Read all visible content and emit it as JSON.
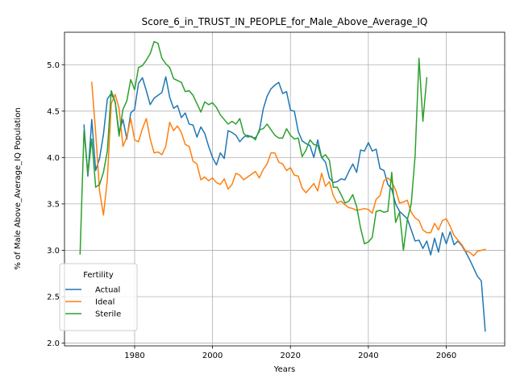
{
  "chart_data": {
    "type": "line",
    "title": "Score_6_in_TRUST_IN_PEOPLE_for_Male_Above_Average_IQ",
    "xlabel": "Years",
    "ylabel": "% of Male Above_Average_IQ Population",
    "xlim": [
      1962,
      2075
    ],
    "ylim": [
      1.97,
      5.35
    ],
    "xticks": [
      1980,
      2000,
      2020,
      2040,
      2060
    ],
    "yticks": [
      2.0,
      2.5,
      3.0,
      3.5,
      4.0,
      4.5,
      5.0
    ],
    "ytick_labels": [
      "2.0",
      "2.5",
      "3.0",
      "3.5",
      "4.0",
      "4.5",
      "5.0"
    ],
    "grid": true,
    "legend": {
      "title": "Fertility",
      "position": "lower-left"
    },
    "colors": {
      "Actual": "#1f77b4",
      "Ideal": "#ff7f0e",
      "Sterile": "#2ca02c"
    },
    "series": [
      {
        "name": "Actual",
        "x": [
          1967,
          1968,
          1969,
          1970,
          1971,
          1972,
          1973,
          1974,
          1975,
          1976,
          1977,
          1978,
          1979,
          1980,
          1981,
          1982,
          1983,
          1984,
          1985,
          1986,
          1987,
          1988,
          1989,
          1990,
          1991,
          1992,
          1993,
          1994,
          1995,
          1996,
          1997,
          1998,
          1999,
          2000,
          2001,
          2002,
          2003,
          2004,
          2005,
          2006,
          2007,
          2008,
          2009,
          2010,
          2011,
          2012,
          2013,
          2014,
          2015,
          2016,
          2017,
          2018,
          2019,
          2020,
          2021,
          2022,
          2023,
          2024,
          2025,
          2026,
          2027,
          2028,
          2029,
          2030,
          2031,
          2032,
          2033,
          2034,
          2035,
          2036,
          2037,
          2038,
          2039,
          2040,
          2041,
          2042,
          2043,
          2044,
          2045,
          2046,
          2047,
          2048,
          2049,
          2050,
          2051,
          2052,
          2053,
          2054,
          2055,
          2056,
          2057,
          2058,
          2059,
          2060,
          2061,
          2062,
          2063,
          2064,
          2065,
          2066,
          2067,
          2068,
          2069,
          2070
        ],
        "values": [
          4.35,
          3.8,
          4.41,
          3.86,
          3.99,
          4.25,
          4.63,
          4.69,
          4.6,
          4.27,
          4.41,
          4.2,
          4.48,
          4.52,
          4.8,
          4.86,
          4.72,
          4.57,
          4.64,
          4.67,
          4.7,
          4.87,
          4.65,
          4.53,
          4.56,
          4.43,
          4.48,
          4.36,
          4.35,
          4.22,
          4.33,
          4.26,
          4.12,
          4.0,
          3.92,
          4.05,
          3.99,
          4.29,
          4.27,
          4.24,
          4.17,
          4.22,
          4.24,
          4.22,
          4.21,
          4.28,
          4.52,
          4.66,
          4.74,
          4.78,
          4.81,
          4.69,
          4.71,
          4.51,
          4.5,
          4.28,
          4.18,
          4.15,
          4.13,
          4.0,
          4.19,
          4.0,
          3.95,
          3.78,
          3.73,
          3.74,
          3.77,
          3.76,
          3.85,
          3.93,
          3.84,
          4.08,
          4.07,
          4.16,
          4.07,
          4.09,
          3.88,
          3.86,
          3.71,
          3.66,
          3.5,
          3.42,
          3.38,
          3.34,
          3.22,
          3.1,
          3.11,
          3.02,
          3.1,
          2.95,
          3.13,
          2.98,
          3.19,
          3.07,
          3.2,
          3.06,
          3.1,
          3.05,
          2.98,
          2.9,
          2.81,
          2.72,
          2.67,
          2.13
        ]
      },
      {
        "name": "Ideal",
        "x": [
          1969,
          1970,
          1971,
          1972,
          1973,
          1974,
          1975,
          1976,
          1977,
          1978,
          1979,
          1980,
          1981,
          1982,
          1983,
          1984,
          1985,
          1986,
          1987,
          1988,
          1989,
          1990,
          1991,
          1992,
          1993,
          1994,
          1995,
          1996,
          1997,
          1998,
          1999,
          2000,
          2001,
          2002,
          2003,
          2004,
          2005,
          2006,
          2007,
          2008,
          2009,
          2010,
          2011,
          2012,
          2013,
          2014,
          2015,
          2016,
          2017,
          2018,
          2019,
          2020,
          2021,
          2022,
          2023,
          2024,
          2025,
          2026,
          2027,
          2028,
          2029,
          2030,
          2031,
          2032,
          2033,
          2034,
          2035,
          2036,
          2037,
          2038,
          2039,
          2040,
          2041,
          2042,
          2043,
          2044,
          2045,
          2046,
          2047,
          2048,
          2049,
          2050,
          2051,
          2052,
          2053,
          2054,
          2055,
          2056,
          2057,
          2058,
          2059,
          2060,
          2061,
          2062,
          2063,
          2064,
          2065,
          2066,
          2067,
          2068,
          2069,
          2070
        ],
        "values": [
          4.81,
          4.27,
          3.64,
          3.38,
          3.76,
          4.58,
          4.68,
          4.53,
          4.12,
          4.22,
          4.42,
          4.19,
          4.17,
          4.31,
          4.42,
          4.2,
          4.05,
          4.06,
          4.03,
          4.12,
          4.38,
          4.29,
          4.34,
          4.27,
          4.14,
          4.12,
          3.96,
          3.93,
          3.76,
          3.79,
          3.75,
          3.78,
          3.73,
          3.71,
          3.77,
          3.66,
          3.71,
          3.83,
          3.81,
          3.76,
          3.79,
          3.82,
          3.85,
          3.78,
          3.87,
          3.93,
          4.05,
          4.05,
          3.95,
          3.93,
          3.86,
          3.89,
          3.81,
          3.8,
          3.67,
          3.62,
          3.67,
          3.72,
          3.64,
          3.83,
          3.69,
          3.74,
          3.59,
          3.51,
          3.53,
          3.49,
          3.46,
          3.45,
          3.43,
          3.44,
          3.45,
          3.44,
          3.4,
          3.55,
          3.59,
          3.75,
          3.78,
          3.74,
          3.65,
          3.51,
          3.52,
          3.54,
          3.41,
          3.35,
          3.32,
          3.22,
          3.19,
          3.19,
          3.29,
          3.22,
          3.32,
          3.34,
          3.26,
          3.16,
          3.11,
          3.06,
          2.99,
          2.98,
          2.94,
          2.99,
          3.0,
          3.01
        ]
      },
      {
        "name": "Sterile",
        "x": [
          1966,
          1967,
          1968,
          1969,
          1970,
          1971,
          1972,
          1973,
          1974,
          1975,
          1976,
          1977,
          1978,
          1979,
          1980,
          1981,
          1982,
          1983,
          1984,
          1985,
          1986,
          1987,
          1988,
          1989,
          1990,
          1991,
          1992,
          1993,
          1994,
          1995,
          1996,
          1997,
          1998,
          1999,
          2000,
          2001,
          2002,
          2003,
          2004,
          2005,
          2006,
          2007,
          2008,
          2009,
          2010,
          2011,
          2012,
          2013,
          2014,
          2015,
          2016,
          2017,
          2018,
          2019,
          2020,
          2021,
          2022,
          2023,
          2024,
          2025,
          2026,
          2027,
          2028,
          2029,
          2030,
          2031,
          2032,
          2033,
          2034,
          2035,
          2036,
          2037,
          2038,
          2039,
          2040,
          2041,
          2042,
          2043,
          2044,
          2045,
          2046,
          2047,
          2048,
          2049,
          2050,
          2051,
          2052,
          2053,
          2054,
          2055
        ],
        "values": [
          2.96,
          4.29,
          3.82,
          4.2,
          3.68,
          3.71,
          3.84,
          4.07,
          4.72,
          4.6,
          4.23,
          4.52,
          4.61,
          4.84,
          4.73,
          4.97,
          4.99,
          5.05,
          5.12,
          5.25,
          5.23,
          5.07,
          5.01,
          4.97,
          4.85,
          4.83,
          4.81,
          4.71,
          4.72,
          4.67,
          4.58,
          4.49,
          4.6,
          4.57,
          4.59,
          4.54,
          4.46,
          4.41,
          4.36,
          4.39,
          4.36,
          4.42,
          4.26,
          4.22,
          4.23,
          4.19,
          4.3,
          4.31,
          4.36,
          4.3,
          4.24,
          4.21,
          4.21,
          4.31,
          4.24,
          4.2,
          4.21,
          4.01,
          4.08,
          4.19,
          4.14,
          4.13,
          4.0,
          4.03,
          3.97,
          3.68,
          3.68,
          3.6,
          3.51,
          3.53,
          3.6,
          3.47,
          3.24,
          3.07,
          3.09,
          3.14,
          3.42,
          3.43,
          3.41,
          3.42,
          3.84,
          3.3,
          3.41,
          3.0,
          3.33,
          3.5,
          4.02,
          5.07,
          4.39,
          4.86
        ]
      }
    ]
  }
}
